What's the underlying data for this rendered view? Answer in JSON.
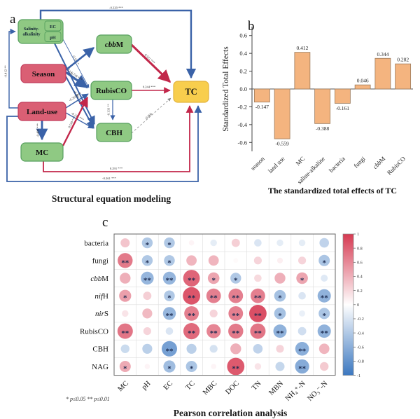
{
  "figure": {
    "panel_a": {
      "label": "a",
      "caption": "Structural equation modeling",
      "node_colors": {
        "green": "#8FC983",
        "pink": "#DA5F74",
        "yellow": "#F8CE4D"
      },
      "edge_colors": {
        "negative": "#3A62A8",
        "positive": "#C2274A",
        "ns": "#888888"
      },
      "nodes": [
        {
          "id": "sa",
          "label": "Salinity-alkalinity",
          "sub": [
            "EC",
            "pH"
          ],
          "type": "green"
        },
        {
          "id": "season",
          "label": "Season",
          "type": "pink"
        },
        {
          "id": "landuse",
          "label": "Land-use",
          "type": "pink"
        },
        {
          "id": "mc",
          "label": "MC",
          "type": "green"
        },
        {
          "id": "cbbm",
          "label": "cbbM",
          "type": "green"
        },
        {
          "id": "rubisco",
          "label": "RubisCO",
          "type": "green"
        },
        {
          "id": "cbh",
          "label": "CBH",
          "type": "green"
        },
        {
          "id": "tc",
          "label": "TC",
          "type": "yellow"
        }
      ],
      "edges": [
        {
          "from": "sa",
          "to": "tc",
          "label": "-0.329 ***",
          "sign": "negative"
        },
        {
          "from": "landuse",
          "to": "sa",
          "label": "-0.412 **",
          "sign": "negative"
        },
        {
          "from": "sa",
          "to": "rubisco",
          "label": "-0.106 *",
          "sign": "negative"
        },
        {
          "from": "sa",
          "to": "cbh",
          "label": "-0.374 ***",
          "sign": "negative"
        },
        {
          "from": "season",
          "to": "rubisco",
          "label": "-0.738 ***",
          "sign": "negative"
        },
        {
          "from": "season",
          "to": "cbh",
          "label": "-0.465 ***",
          "sign": "negative"
        },
        {
          "from": "season",
          "to": "cbbm",
          "label": "",
          "sign": "negative"
        },
        {
          "from": "landuse",
          "to": "rubisco",
          "label": "-0.263 ***",
          "sign": "negative"
        },
        {
          "from": "landuse",
          "to": "cbh",
          "label": "-0.236 ***",
          "sign": "negative"
        },
        {
          "from": "landuse",
          "to": "mc",
          "label": "-0.488 ***",
          "sign": "negative"
        },
        {
          "from": "mc",
          "to": "rubisco",
          "label": "0.530 ***",
          "sign": "positive"
        },
        {
          "from": "mc",
          "to": "tc",
          "label": "0.291 ***",
          "sign": "positive"
        },
        {
          "from": "cbbm",
          "to": "tc",
          "label": "0.521 ***",
          "sign": "positive"
        },
        {
          "from": "rubisco",
          "to": "tc",
          "label": "0.244 ***",
          "sign": "positive"
        },
        {
          "from": "rubisco",
          "to": "cbh",
          "label": "-0.133 **",
          "sign": "negative"
        },
        {
          "from": "cbh",
          "to": "tc",
          "label": "-0.060",
          "sign": "ns"
        },
        {
          "from": "landuse",
          "to": "tc",
          "label": "-0.261 ***",
          "sign": "negative"
        }
      ]
    },
    "panel_b": {
      "label": "b"
    },
    "panel_c": {
      "label": "c"
    }
  },
  "chart_data": [
    {
      "type": "bar",
      "panel": "b",
      "categories": [
        "season",
        "land use",
        "MC",
        "saline-alkaline",
        "bacteria",
        "fungi",
        "cbbM",
        "RubisCO"
      ],
      "values": [
        -0.147,
        -0.559,
        0.412,
        -0.388,
        -0.161,
        0.046,
        0.344,
        0.282
      ],
      "title": "",
      "xlabel": "The standardized total effects of TC",
      "ylabel": "Standardized Total Effects",
      "ylim": [
        -0.7,
        0.7
      ],
      "yticks": [
        0.6,
        0.4,
        0.2,
        0.0,
        -0.2,
        -0.4,
        -0.6
      ],
      "bar_color": "#F4B47F",
      "bar_border": "#9C7B5C",
      "grid": false,
      "legend": "none"
    },
    {
      "type": "heatmap",
      "panel": "c",
      "caption": "Pearson correlation analysis",
      "footnote": "* p≤0.05  ** p≤0.01",
      "rows": [
        "bacteria",
        "fungi",
        "cbbM",
        "nifH",
        "nirS",
        "RubisCO",
        "CBH",
        "NAG"
      ],
      "cols": [
        "MC",
        "pH",
        "EC",
        "TC",
        "MBC",
        "DOC",
        "TN",
        "MBN",
        "NH₄⁺-N",
        "NO₃⁻-N"
      ],
      "values": [
        [
          0.22,
          -0.3,
          -0.3,
          0.04,
          -0.1,
          0.18,
          -0.14,
          -0.1,
          -0.1,
          -0.24
        ],
        [
          0.5,
          -0.3,
          -0.3,
          0.28,
          0.28,
          0.02,
          0.16,
          0.06,
          0.16,
          -0.32
        ],
        [
          0.3,
          -0.4,
          -0.4,
          0.58,
          0.34,
          -0.3,
          0.14,
          0.3,
          0.34,
          -0.12
        ],
        [
          0.36,
          0.18,
          -0.3,
          0.64,
          0.48,
          0.48,
          0.48,
          -0.34,
          -0.14,
          -0.42
        ],
        [
          0.1,
          0.26,
          -0.4,
          0.48,
          0.16,
          0.48,
          0.66,
          -0.34,
          -0.08,
          -0.32
        ],
        [
          0.52,
          0.16,
          -0.14,
          0.56,
          0.46,
          0.5,
          0.52,
          -0.42,
          -0.18,
          -0.42
        ],
        [
          -0.2,
          -0.26,
          -0.52,
          -0.26,
          -0.16,
          0.3,
          -0.24,
          0.16,
          -0.44,
          0.28
        ],
        [
          0.32,
          0.04,
          -0.36,
          -0.32,
          0.04,
          0.62,
          0.1,
          -0.22,
          -0.46,
          0.2
        ]
      ],
      "stars": [
        [
          "",
          "*",
          "*",
          "",
          "",
          "",
          "",
          "",
          "",
          ""
        ],
        [
          "**",
          "*",
          "*",
          "",
          "",
          "",
          "",
          "",
          "",
          "*"
        ],
        [
          "",
          "**",
          "**",
          "**",
          "*",
          "*",
          "",
          "",
          "*",
          ""
        ],
        [
          "*",
          "",
          "*",
          "**",
          "**",
          "**",
          "**",
          "*",
          "",
          "**"
        ],
        [
          "",
          "",
          "**",
          "**",
          "",
          "**",
          "**",
          "*",
          "",
          "*"
        ],
        [
          "**",
          "",
          "",
          "**",
          "**",
          "**",
          "**",
          "**",
          "",
          "**"
        ],
        [
          "",
          "",
          "**",
          "",
          "",
          "",
          "",
          "",
          "**",
          ""
        ],
        [
          "*",
          "",
          "*",
          "*",
          "",
          "**",
          "",
          "",
          "**",
          ""
        ]
      ],
      "colorbar_ticks": [
        1,
        0.8,
        0.6,
        0.4,
        0.2,
        0,
        -0.2,
        -0.4,
        -0.6,
        -0.8,
        -1
      ],
      "positive_color": "#D63A52",
      "negative_color": "#3C78C0",
      "star_color": "#1C2B50"
    }
  ]
}
